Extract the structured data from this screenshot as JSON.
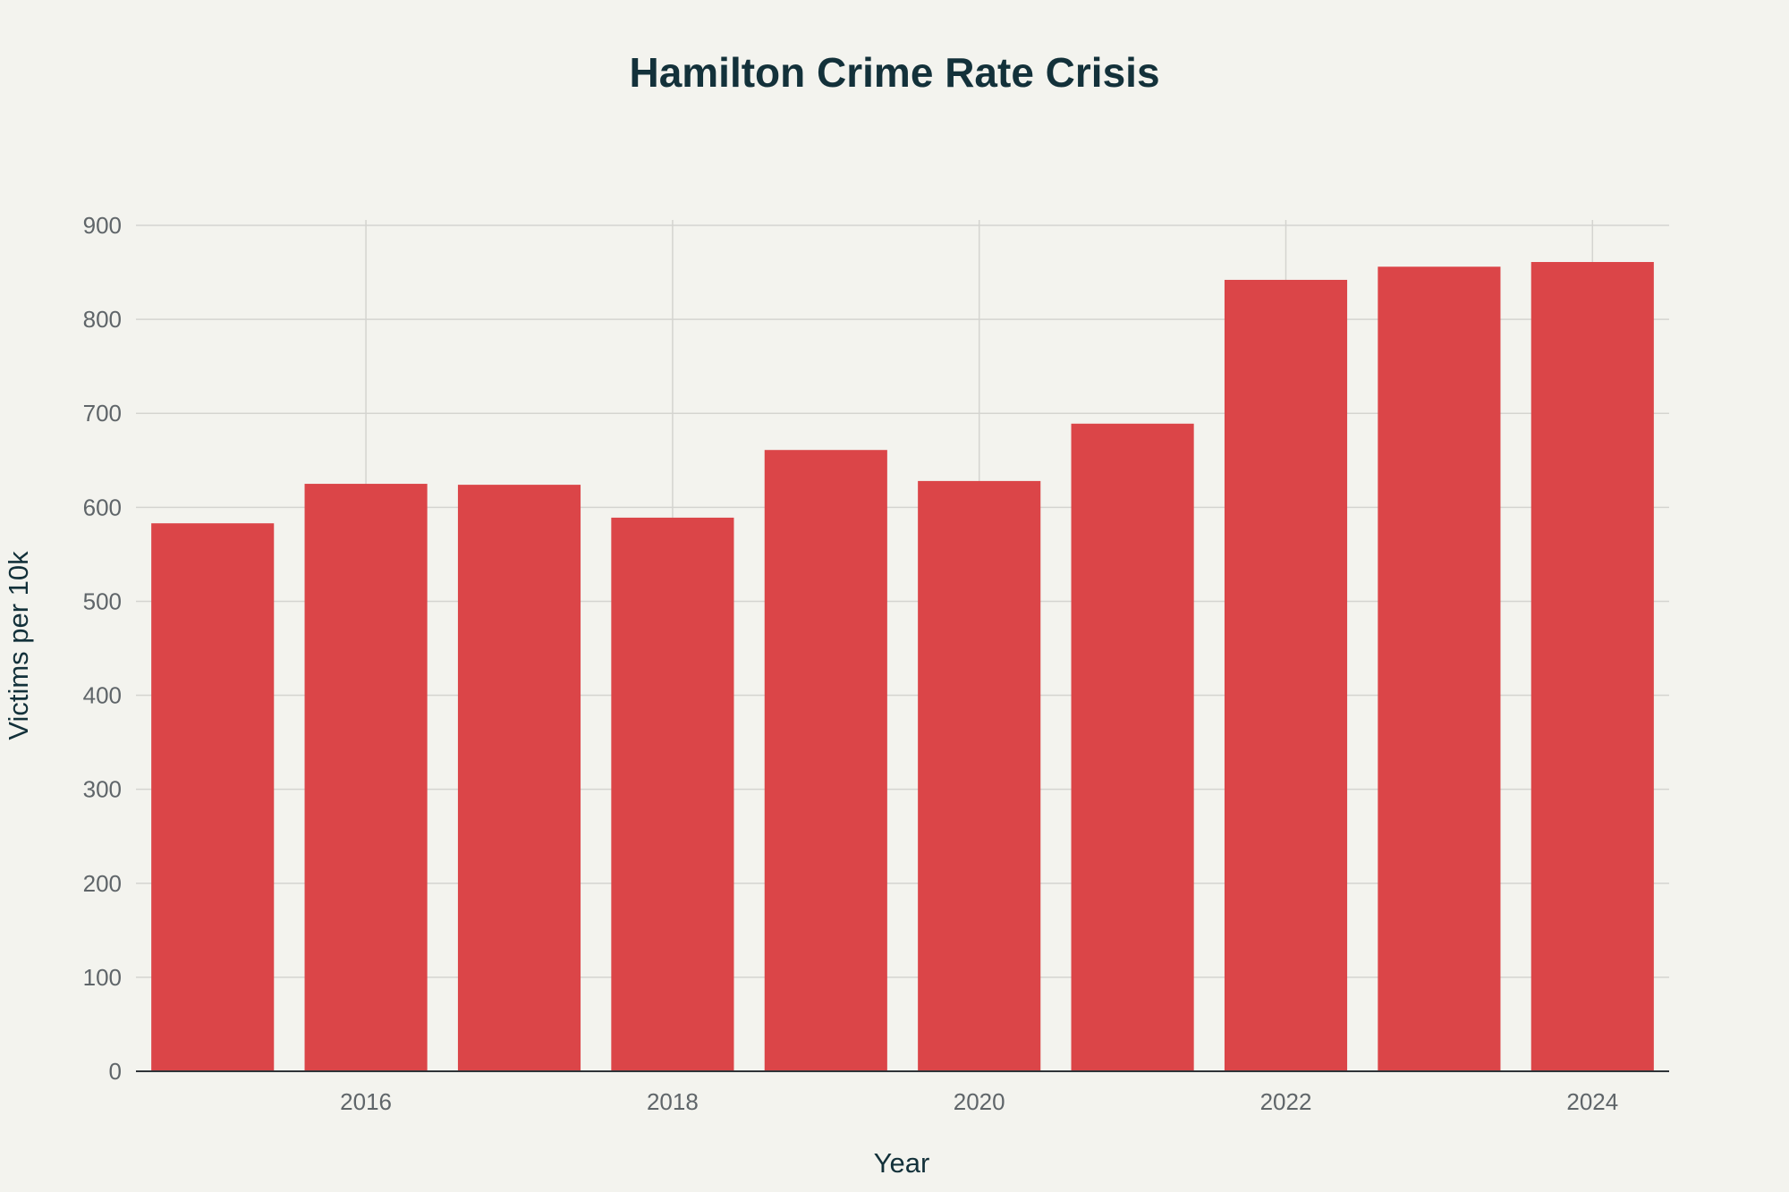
{
  "chart_data": {
    "type": "bar",
    "title": "Hamilton Crime Rate Crisis",
    "xlabel": "Year",
    "ylabel": "Victims per 10k",
    "categories": [
      2015,
      2016,
      2017,
      2018,
      2019,
      2020,
      2021,
      2022,
      2023,
      2024
    ],
    "values": [
      583,
      625,
      624,
      589,
      661,
      628,
      689,
      842,
      856,
      861
    ],
    "x_ticks": [
      2016,
      2018,
      2020,
      2022,
      2024
    ],
    "y_ticks": [
      0,
      100,
      200,
      300,
      400,
      500,
      600,
      700,
      800,
      900
    ],
    "ylim": [
      0,
      900
    ],
    "xlim": [
      2014.5,
      2024.5
    ],
    "grid": true,
    "legend": "none",
    "colors": {
      "bar": "#db4548",
      "background": "#f3f3ee",
      "title": "#13313a"
    }
  }
}
